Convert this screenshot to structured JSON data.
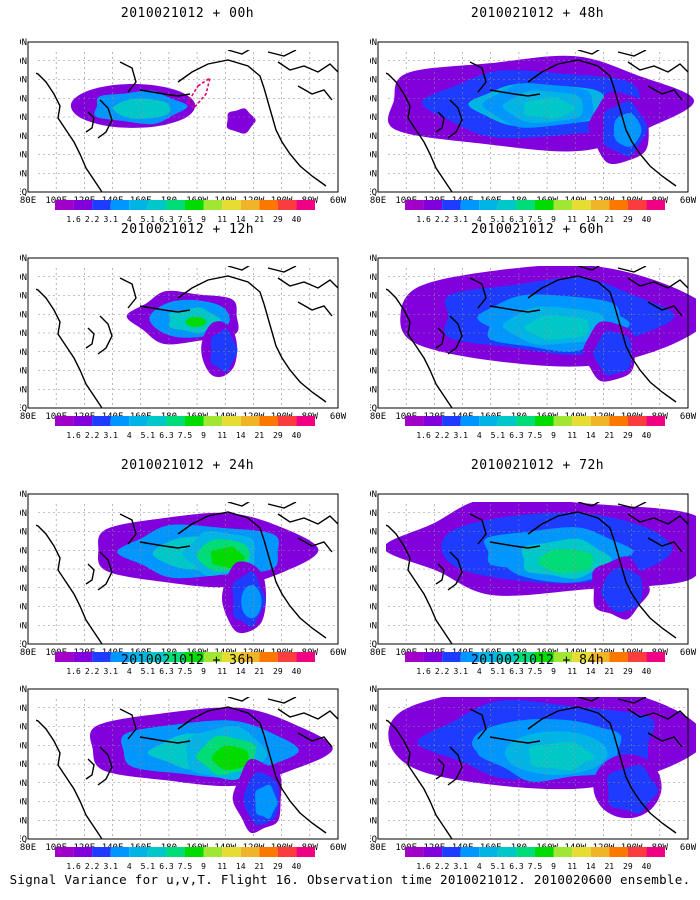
{
  "panels": [
    {
      "title": "2010021012 + 00h"
    },
    {
      "title": "2010021012 + 48h"
    },
    {
      "title": "2010021012 + 12h"
    },
    {
      "title": "2010021012 + 60h"
    },
    {
      "title": "2010021012 + 24h"
    },
    {
      "title": "2010021012 + 72h"
    },
    {
      "title": "2010021012 + 36h"
    },
    {
      "title": "2010021012 + 84h"
    }
  ],
  "map": {
    "lon_labels": [
      "80E",
      "100E",
      "120E",
      "140E",
      "160E",
      "180",
      "160W",
      "140W",
      "120W",
      "100W",
      "80W",
      "60W"
    ],
    "lat_labels": [
      "EQ",
      "10N",
      "20N",
      "30N",
      "40N",
      "50N",
      "60N",
      "70N",
      "80N"
    ]
  },
  "colorbar": {
    "labels": [
      "1.6",
      "2.2",
      "3.1",
      "4",
      "5.1",
      "6.3",
      "7.5",
      "9",
      "11",
      "14",
      "21",
      "29",
      "40"
    ],
    "colors": [
      "#a000c8",
      "#8200dc",
      "#1e3cff",
      "#0096ff",
      "#00b4e6",
      "#00c8c8",
      "#00dc78",
      "#00dc00",
      "#a0e632",
      "#e6dc32",
      "#f0b428",
      "#fa7800",
      "#fa3c3c",
      "#f00082"
    ]
  },
  "footer": "Signal Variance for u,v,T. Flight 16. Observation time 2010021012. 2010020600 ensemble."
}
